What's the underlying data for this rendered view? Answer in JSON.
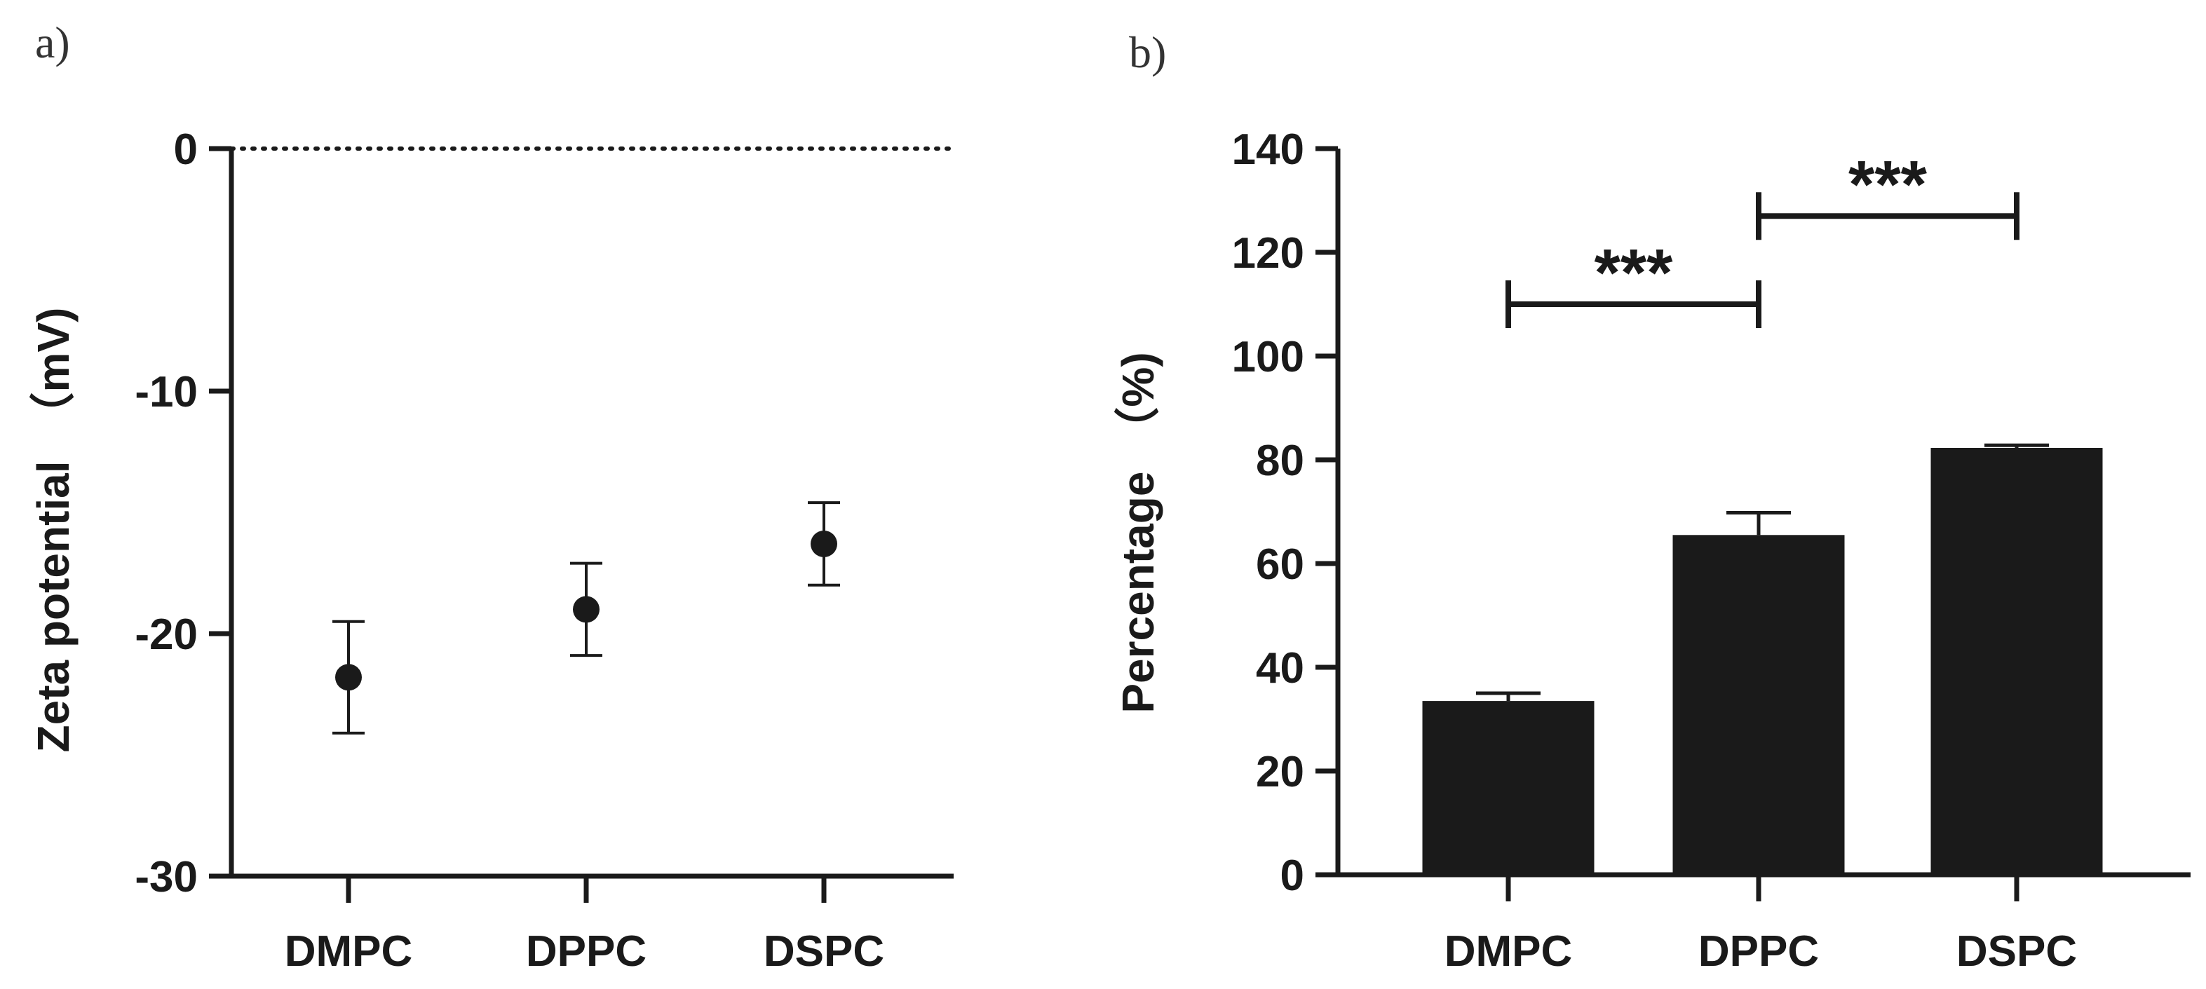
{
  "panel_a_label": "a)",
  "panel_b_label": "b)",
  "colors": {
    "ink": "#1a1a1a",
    "bar": "#1a1a1a",
    "background": "#ffffff"
  },
  "chart_data": [
    {
      "type": "scatter",
      "panel": "a)",
      "title": "",
      "xlabel": "",
      "ylabel": "Zeta potential （mV)",
      "ylabel_text": "Zeta potential",
      "ylabel_unit": "（mV)",
      "categories": [
        "DMPC",
        "DPPC",
        "DSPC"
      ],
      "values": [
        -21.8,
        -19.0,
        -16.3
      ],
      "errors": [
        2.3,
        1.9,
        1.7
      ],
      "ylim": [
        -30,
        0
      ],
      "yticks": [
        0,
        -10,
        -20,
        -30
      ],
      "ytick_labels": [
        "0",
        "-10",
        "-20",
        "-30"
      ],
      "reference_line": {
        "y": 0,
        "style": "dotted"
      },
      "grid": false
    },
    {
      "type": "bar",
      "panel": "b)",
      "title": "",
      "xlabel": "",
      "ylabel": "Percentage （%)",
      "ylabel_text": "Percentage",
      "ylabel_unit": "（%)",
      "categories": [
        "DMPC",
        "DPPC",
        "DSPC"
      ],
      "values": [
        33.5,
        65.5,
        82.3
      ],
      "errors": [
        1.5,
        4.3,
        0.5
      ],
      "ylim": [
        0,
        140
      ],
      "yticks": [
        0,
        20,
        40,
        60,
        80,
        100,
        120,
        140
      ],
      "ytick_labels": [
        "0",
        "20",
        "40",
        "60",
        "80",
        "100",
        "120",
        "140"
      ],
      "significance": [
        {
          "from": "DMPC",
          "to": "DPPC",
          "y": 110,
          "label": "***"
        },
        {
          "from": "DPPC",
          "to": "DSPC",
          "y": 127,
          "label": "***"
        }
      ],
      "grid": false
    }
  ]
}
